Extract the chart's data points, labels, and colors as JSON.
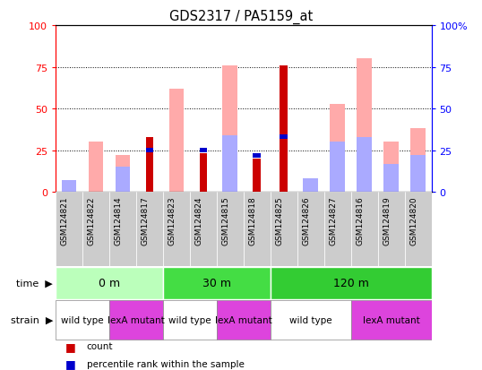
{
  "title": "GDS2317 / PA5159_at",
  "samples": [
    "GSM124821",
    "GSM124822",
    "GSM124814",
    "GSM124817",
    "GSM124823",
    "GSM124824",
    "GSM124815",
    "GSM124818",
    "GSM124825",
    "GSM124826",
    "GSM124827",
    "GSM124816",
    "GSM124819",
    "GSM124820"
  ],
  "count": [
    0,
    0,
    0,
    33,
    0,
    23,
    0,
    20,
    76,
    0,
    0,
    0,
    0,
    0
  ],
  "percentile_rank": [
    0,
    0,
    0,
    25,
    0,
    25,
    0,
    22,
    33,
    0,
    0,
    0,
    0,
    0
  ],
  "value_absent": [
    0,
    30,
    22,
    0,
    62,
    0,
    76,
    0,
    0,
    0,
    53,
    80,
    30,
    38
  ],
  "rank_absent": [
    7,
    0,
    15,
    0,
    0,
    0,
    34,
    0,
    0,
    8,
    30,
    33,
    17,
    22
  ],
  "count_color": "#cc0000",
  "percentile_color": "#0000cc",
  "value_absent_color": "#ffaaaa",
  "rank_absent_color": "#aaaaff",
  "ylim": [
    0,
    100
  ],
  "time_groups": [
    {
      "label": "0 m",
      "start": 0,
      "end": 4,
      "color": "#bbffbb"
    },
    {
      "label": "30 m",
      "start": 4,
      "end": 8,
      "color": "#44dd44"
    },
    {
      "label": "120 m",
      "start": 8,
      "end": 14,
      "color": "#33cc33"
    }
  ],
  "strain_groups": [
    {
      "label": "wild type",
      "start": 0,
      "end": 2,
      "color": "#ffffff"
    },
    {
      "label": "lexA mutant",
      "start": 2,
      "end": 4,
      "color": "#dd44dd"
    },
    {
      "label": "wild type",
      "start": 4,
      "end": 6,
      "color": "#ffffff"
    },
    {
      "label": "lexA mutant",
      "start": 6,
      "end": 8,
      "color": "#dd44dd"
    },
    {
      "label": "wild type",
      "start": 8,
      "end": 11,
      "color": "#ffffff"
    },
    {
      "label": "lexA mutant",
      "start": 11,
      "end": 14,
      "color": "#dd44dd"
    }
  ],
  "grid_lines": [
    25,
    50,
    75
  ],
  "xtick_bg": "#cccccc",
  "bar_width": 0.55,
  "thin_bar_width": 0.28
}
